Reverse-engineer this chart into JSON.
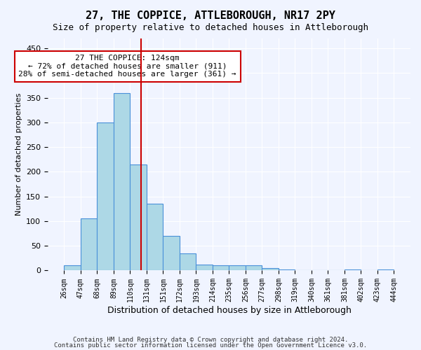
{
  "title": "27, THE COPPICE, ATTLEBOROUGH, NR17 2PY",
  "subtitle": "Size of property relative to detached houses in Attleborough",
  "xlabel": "Distribution of detached houses by size in Attleborough",
  "ylabel": "Number of detached properties",
  "bin_labels": [
    "26sqm",
    "47sqm",
    "68sqm",
    "89sqm",
    "110sqm",
    "131sqm",
    "151sqm",
    "172sqm",
    "193sqm",
    "214sqm",
    "235sqm",
    "256sqm",
    "277sqm",
    "298sqm",
    "319sqm",
    "340sqm",
    "361sqm",
    "381sqm",
    "402sqm",
    "423sqm",
    "444sqm"
  ],
  "bar_values": [
    10,
    105,
    300,
    360,
    215,
    135,
    70,
    35,
    12,
    10,
    10,
    10,
    5,
    2,
    0,
    0,
    0,
    2,
    0,
    2
  ],
  "bar_color": "#add8e6",
  "bar_edge_color": "#4a90d9",
  "background_color": "#f0f4ff",
  "grid_color": "#ffffff",
  "red_line_x": 4.5,
  "annotation_title": "27 THE COPPICE: 124sqm",
  "annotation_line1": "← 72% of detached houses are smaller (911)",
  "annotation_line2": "28% of semi-detached houses are larger (361) →",
  "annotation_box_color": "#ffffff",
  "annotation_box_edge": "#cc0000",
  "vline_color": "#cc0000",
  "ylim": [
    0,
    470
  ],
  "yticks": [
    0,
    50,
    100,
    150,
    200,
    250,
    300,
    350,
    400,
    450
  ],
  "footer1": "Contains HM Land Registry data © Crown copyright and database right 2024.",
  "footer2": "Contains public sector information licensed under the Open Government Licence v3.0."
}
